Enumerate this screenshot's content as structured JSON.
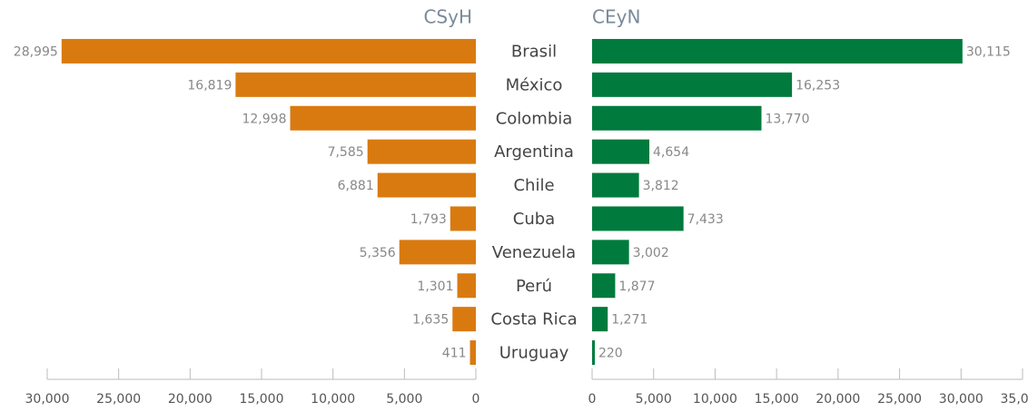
{
  "chart_data": {
    "type": "butterfly",
    "categories": [
      "Brasil",
      "México",
      "Colombia",
      "Argentina",
      "Chile",
      "Cuba",
      "Venezuela",
      "Perú",
      "Costa Rica",
      "Uruguay"
    ],
    "series": [
      {
        "name": "CSyH",
        "color": "#d97a10",
        "values": [
          28995,
          16819,
          12998,
          7585,
          6881,
          1793,
          5356,
          1301,
          1635,
          411
        ],
        "xlim": [
          0,
          30000
        ],
        "xticks": [
          {
            "value": 30000,
            "label": "30,000"
          },
          {
            "value": 25000,
            "label": "25,000"
          },
          {
            "value": 20000,
            "label": "20,000"
          },
          {
            "value": 15000,
            "label": "15,000"
          },
          {
            "value": 10000,
            "label": "10,000"
          },
          {
            "value": 5000,
            "label": "5,000"
          },
          0
        ]
      },
      {
        "name": "CEyN",
        "color": "#007a3d",
        "values": [
          30115,
          16253,
          13770,
          4654,
          3812,
          7433,
          3002,
          1877,
          1271,
          220
        ],
        "xlim": [
          0,
          35000
        ],
        "xticks": [
          0,
          {
            "value": 5000,
            "label": "5,000"
          },
          {
            "value": 10000,
            "label": "10,000"
          },
          {
            "value": 15000,
            "label": "15,000"
          },
          {
            "value": 20000,
            "label": "20,000"
          },
          {
            "value": 25000,
            "label": "25,000"
          },
          {
            "value": 30000,
            "label": "30,000"
          },
          {
            "value": 35000,
            "label": "35,000"
          }
        ]
      }
    ]
  }
}
